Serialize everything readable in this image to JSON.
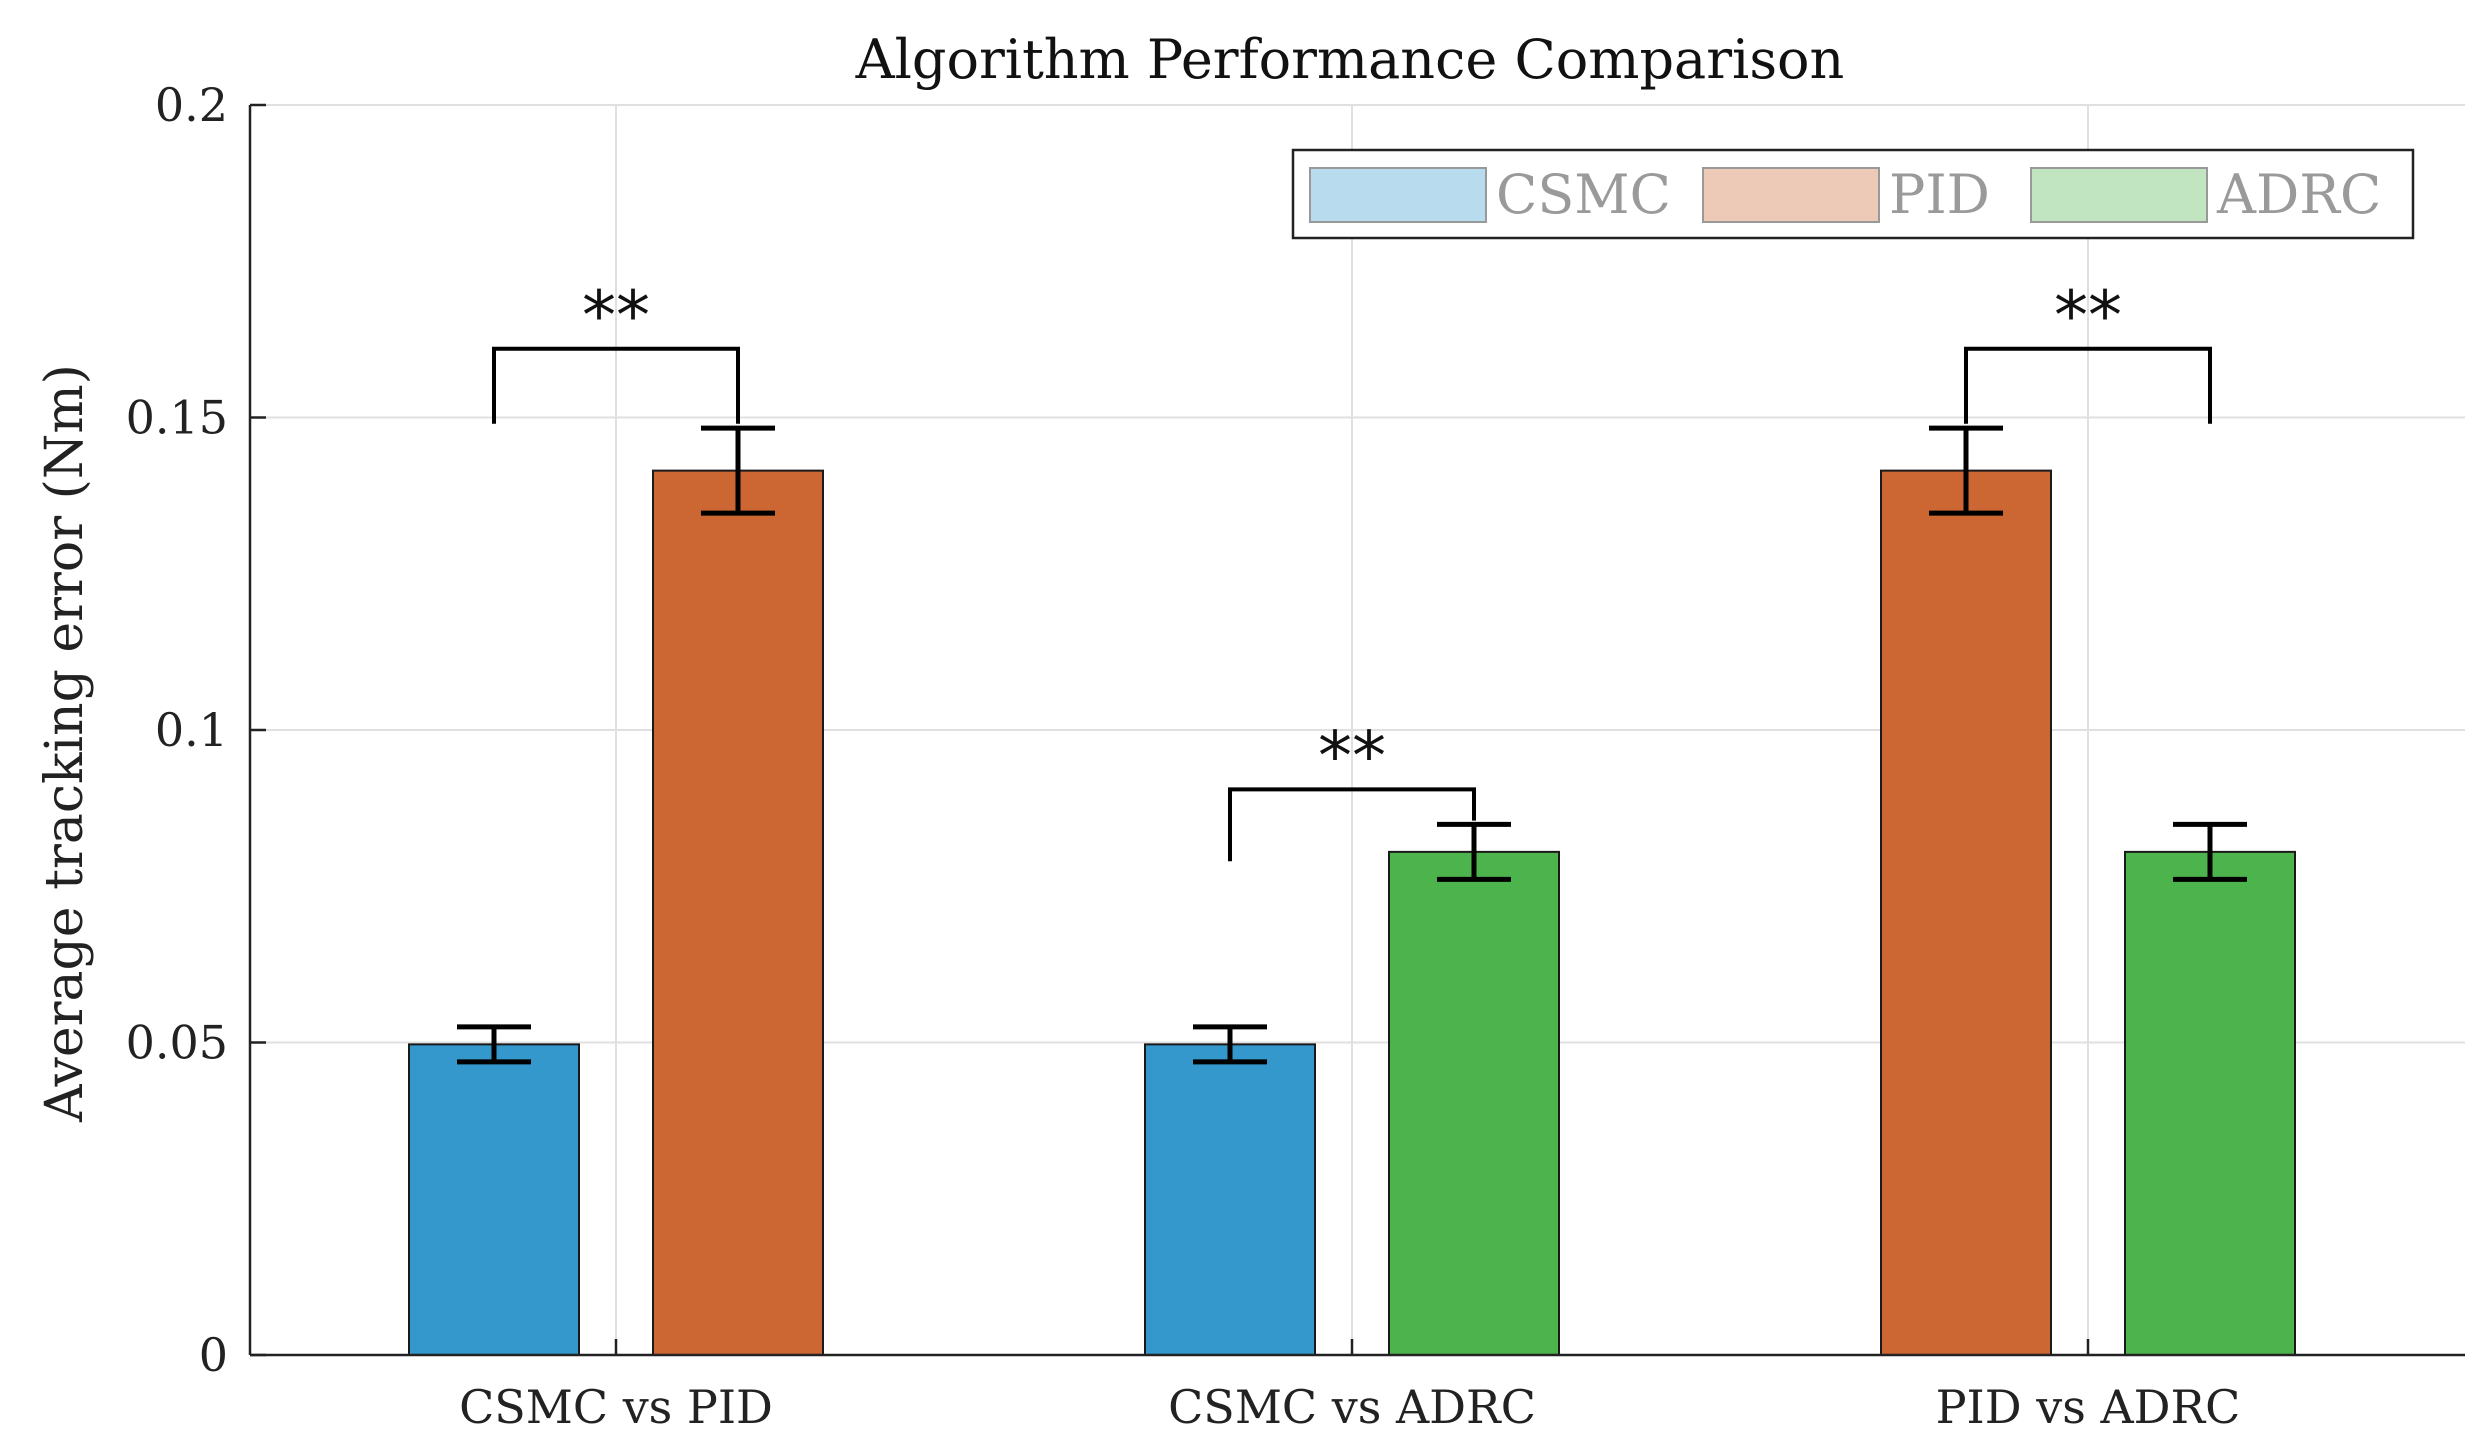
{
  "chart_data": {
    "type": "bar",
    "title": "Algorithm Performance Comparison",
    "xlabel": "",
    "ylabel": "Average tracking error (Nm)",
    "ylim": [
      0,
      0.2
    ],
    "yticks": [
      0,
      0.05,
      0.1,
      0.15,
      0.2
    ],
    "ytick_labels": [
      "0",
      "0.05",
      "0.1",
      "0.15",
      "0.2"
    ],
    "grid": true,
    "legend_position": "top-right",
    "categories": [
      "CSMC vs PID",
      "CSMC vs ADRC",
      "PID vs ADRC"
    ],
    "legend": [
      {
        "name": "CSMC",
        "color": "#3498cc"
      },
      {
        "name": "PID",
        "color": "#cc6633"
      },
      {
        "name": "ADRC",
        "color": "#4db34d"
      }
    ],
    "bars": [
      {
        "category": 0,
        "slot": 0,
        "series": "CSMC",
        "value": 0.0497,
        "error": 0.0028,
        "color": "#3498cc"
      },
      {
        "category": 0,
        "slot": 1,
        "series": "PID",
        "value": 0.1415,
        "error": 0.0068,
        "color": "#cc6633"
      },
      {
        "category": 1,
        "slot": 0,
        "series": "CSMC",
        "value": 0.0497,
        "error": 0.0028,
        "color": "#3498cc"
      },
      {
        "category": 1,
        "slot": 1,
        "series": "ADRC",
        "value": 0.0805,
        "error": 0.0044,
        "color": "#4db34d"
      },
      {
        "category": 2,
        "slot": 0,
        "series": "PID",
        "value": 0.1415,
        "error": 0.0068,
        "color": "#cc6633"
      },
      {
        "category": 2,
        "slot": 1,
        "series": "ADRC",
        "value": 0.0805,
        "error": 0.0044,
        "color": "#4db34d"
      }
    ],
    "significance": [
      {
        "category": 0,
        "label": "**",
        "y": 0.161,
        "left_end": 0.149,
        "right_end": 0.149
      },
      {
        "category": 1,
        "label": "**",
        "y": 0.0905,
        "left_end": 0.079,
        "right_end": 0.0855
      },
      {
        "category": 2,
        "label": "**",
        "y": 0.161,
        "left_end": 0.149,
        "right_end": 0.149
      }
    ]
  }
}
